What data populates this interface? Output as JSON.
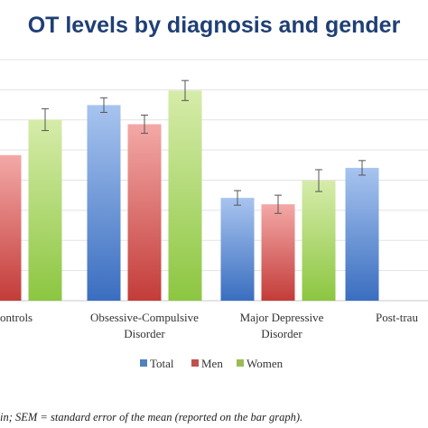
{
  "chart_data": {
    "type": "bar",
    "title": "OT levels by diagnosis and gender",
    "categories": [
      [
        "ontrols"
      ],
      [
        "Obsessive-Compulsive",
        "Disorder"
      ],
      [
        "Major Depressive",
        "Disorder"
      ],
      [
        "Post-trau"
      ]
    ],
    "series": [
      {
        "name": "Total",
        "color": "#4f81bd",
        "values": [
          null,
          215,
          113,
          146
        ],
        "sem": [
          null,
          8,
          8,
          8
        ]
      },
      {
        "name": "Men",
        "color": "#c0504d",
        "values": [
          160,
          194,
          106,
          null
        ],
        "sem": [
          null,
          10,
          10,
          null
        ]
      },
      {
        "name": "Women",
        "color": "#9bbb59",
        "values": [
          199,
          231,
          132,
          null
        ],
        "sem": [
          12,
          11,
          12,
          null
        ]
      }
    ],
    "legend_position": "bottom",
    "grid": true,
    "ylim": [
      0,
      265
    ]
  },
  "footnote": "in; SEM = standard error of the mean (reported on the bar graph)."
}
